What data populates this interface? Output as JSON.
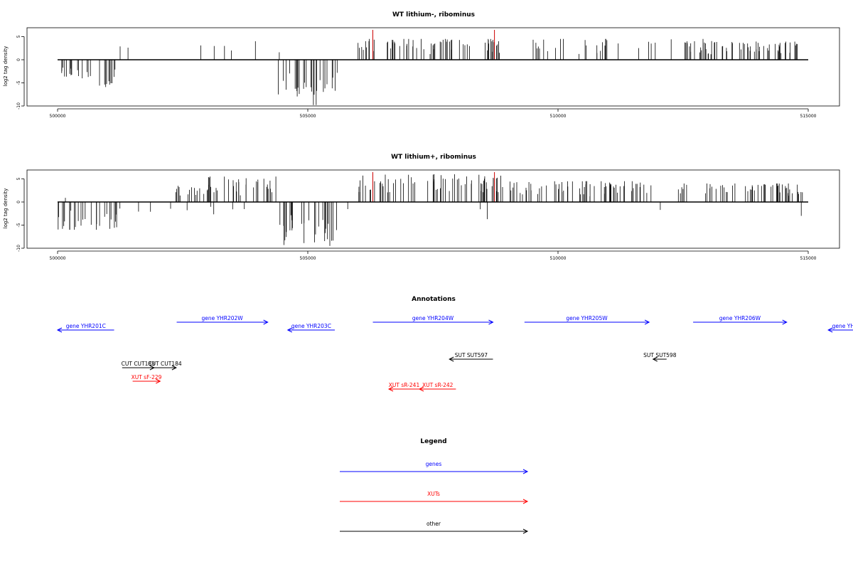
{
  "colors": {
    "genes": "#0000FF",
    "XUTs": "#FF0000",
    "other": "#000000",
    "marker": "#CC0000"
  },
  "chart_data": [
    {
      "type": "bar",
      "title": "WT lithium-, ribominus",
      "ylabel": "log2 tag density",
      "xlim": [
        500000,
        515000
      ],
      "ylim": [
        -10,
        6
      ],
      "x_ticks": [
        "500000",
        "505000",
        "510000",
        "515000"
      ],
      "y_ticks": [
        "-10",
        "-5",
        "0",
        "5"
      ],
      "markers_x": [
        506300,
        508730
      ],
      "positive_strand_regions": [
        {
          "x": [
            501250,
            502000
          ],
          "density": "sparse",
          "max": 3
        },
        {
          "x": [
            502450,
            503700
          ],
          "density": "sparse",
          "max": 3.5
        },
        {
          "x": [
            503850,
            504000
          ],
          "density": "sparse",
          "max": 4
        },
        {
          "x": [
            504350,
            504450
          ],
          "density": "sparse",
          "max": 3.5
        },
        {
          "x": [
            506000,
            508950
          ],
          "density": "dense",
          "max": 4.5
        },
        {
          "x": [
            509050,
            513400
          ],
          "density": "medium",
          "max": 4.5
        },
        {
          "x": [
            512550,
            514850
          ],
          "density": "dense",
          "max": 4
        }
      ],
      "negative_strand_regions": [
        {
          "x": [
            500000,
            500700
          ],
          "density": "dense",
          "min": -4.5
        },
        {
          "x": [
            500700,
            501150
          ],
          "density": "dense",
          "min": -6
        },
        {
          "x": [
            504400,
            504950
          ],
          "density": "dense",
          "min": -8
        },
        {
          "x": [
            504950,
            505300
          ],
          "density": "dense",
          "min": -9.8
        },
        {
          "x": [
            505300,
            505600
          ],
          "density": "dense",
          "min": -7
        }
      ]
    },
    {
      "type": "bar",
      "title": "WT lithium+, ribominus",
      "ylabel": "log2 tag density",
      "xlim": [
        500000,
        515000
      ],
      "ylim": [
        -10,
        6
      ],
      "x_ticks": [
        "500000",
        "505000",
        "510000",
        "515000"
      ],
      "y_ticks": [
        "-10",
        "-5",
        "0",
        "5"
      ],
      "markers_x": [
        506300,
        508730
      ],
      "positive_strand_regions": [
        {
          "x": [
            500050,
            500200
          ],
          "density": "sparse",
          "max": 1
        },
        {
          "x": [
            502300,
            503000
          ],
          "density": "dense",
          "max": 3.5
        },
        {
          "x": [
            503000,
            504400
          ],
          "density": "dense",
          "max": 5.5
        },
        {
          "x": [
            506000,
            508950
          ],
          "density": "dense",
          "max": 6
        },
        {
          "x": [
            509000,
            511900
          ],
          "density": "dense",
          "max": 4.5
        },
        {
          "x": [
            512400,
            514900
          ],
          "density": "dense",
          "max": 4
        }
      ],
      "negative_strand_regions": [
        {
          "x": [
            500000,
            501200
          ],
          "density": "dense",
          "min": -6
        },
        {
          "x": [
            501200,
            502900
          ],
          "density": "sparse",
          "min": -2.5
        },
        {
          "x": [
            502900,
            504300
          ],
          "density": "sparse",
          "min": -3
        },
        {
          "x": [
            504300,
            505600
          ],
          "density": "dense",
          "min": -9.5
        },
        {
          "x": [
            505600,
            506000
          ],
          "density": "sparse",
          "min": -2
        },
        {
          "x": [
            507900,
            508600
          ],
          "density": "sparse",
          "min": -4
        },
        {
          "x": [
            511900,
            512050
          ],
          "density": "sparse",
          "min": -2
        },
        {
          "x": [
            514800,
            515000
          ],
          "density": "sparse",
          "min": -3
        }
      ]
    },
    {
      "type": "annotation_track",
      "title": "Annotations",
      "xlim": [
        500000,
        515000
      ],
      "features": [
        {
          "label": "gene YHR201C",
          "class": "genes",
          "row": 0,
          "start": 500000,
          "end": 501130,
          "dir": "left"
        },
        {
          "label": "gene YHR202W",
          "class": "genes",
          "row": 1,
          "start": 502380,
          "end": 504200,
          "dir": "right"
        },
        {
          "label": "gene YHR203C",
          "class": "genes",
          "row": 0,
          "start": 504600,
          "end": 505540,
          "dir": "left"
        },
        {
          "label": "gene YHR204W",
          "class": "genes",
          "row": 1,
          "start": 506300,
          "end": 508700,
          "dir": "right"
        },
        {
          "label": "gene YHR205W",
          "class": "genes",
          "row": 1,
          "start": 509330,
          "end": 511820,
          "dir": "right"
        },
        {
          "label": "gene YHR206W",
          "class": "genes",
          "row": 1,
          "start": 512700,
          "end": 514570,
          "dir": "right"
        },
        {
          "label": "gene YH",
          "class": "genes",
          "row": 0,
          "start": 515400,
          "end": 516000,
          "dir": "left"
        },
        {
          "label": "SUT SUT597",
          "class": "other",
          "row": 2,
          "start": 507830,
          "end": 508700,
          "dir": "left"
        },
        {
          "label": "SUT SUT598",
          "class": "other",
          "row": 2,
          "start": 511900,
          "end": 512170,
          "dir": "left"
        },
        {
          "label": "CUT CUT183",
          "class": "other",
          "row": 3,
          "start": 501290,
          "end": 501930,
          "dir": "right"
        },
        {
          "label": "CUT CUT184",
          "class": "other",
          "row": 3,
          "start": 501920,
          "end": 502370,
          "dir": "right"
        },
        {
          "label": "XUT sF-229",
          "class": "XUTs",
          "row": 4,
          "start": 501500,
          "end": 502050,
          "dir": "right"
        },
        {
          "label": "XUT sR-241",
          "class": "XUTs",
          "row": 5,
          "start": 506620,
          "end": 507230,
          "dir": "left"
        },
        {
          "label": "XUT sR-242",
          "class": "XUTs",
          "row": 5,
          "start": 507230,
          "end": 507960,
          "dir": "left"
        }
      ]
    },
    {
      "type": "legend",
      "title": "Legend",
      "entries": [
        {
          "label": "genes",
          "class": "genes"
        },
        {
          "label": "XUTs",
          "class": "XUTs"
        },
        {
          "label": "other",
          "class": "other"
        }
      ]
    }
  ]
}
